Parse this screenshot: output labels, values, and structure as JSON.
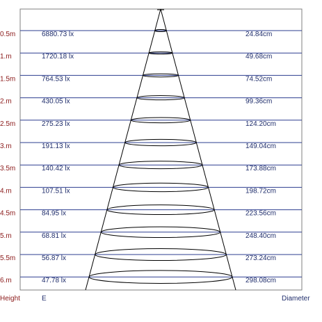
{
  "chart_data": {
    "type": "table",
    "rows": [
      {
        "height": "0.5m",
        "illuminance": "6880.73 lx",
        "diameter": "24.84cm"
      },
      {
        "height": "1.m",
        "illuminance": "1720.18 lx",
        "diameter": "49.68cm"
      },
      {
        "height": "1.5m",
        "illuminance": "764.53 lx",
        "diameter": "74.52cm"
      },
      {
        "height": "2.m",
        "illuminance": "430.05 lx",
        "diameter": "99.36cm"
      },
      {
        "height": "2.5m",
        "illuminance": "275.23 lx",
        "diameter": "124.20cm"
      },
      {
        "height": "3.m",
        "illuminance": "191.13 lx",
        "diameter": "149.04cm"
      },
      {
        "height": "3.5m",
        "illuminance": "140.42 lx",
        "diameter": "173.88cm"
      },
      {
        "height": "4.m",
        "illuminance": "107.51 lx",
        "diameter": "198.72cm"
      },
      {
        "height": "4.5m",
        "illuminance": "84.95 lx",
        "diameter": "223.56cm"
      },
      {
        "height": "5.m",
        "illuminance": "68.81 lx",
        "diameter": "248.40cm"
      },
      {
        "height": "5.5m",
        "illuminance": "56.87 lx",
        "diameter": "273.24cm"
      },
      {
        "height": "6.m",
        "illuminance": "47.78 lx",
        "diameter": "298.08cm"
      }
    ],
    "footer": {
      "height_label": "Height",
      "e_label": "E",
      "diameter_label": "Diameter"
    }
  },
  "colors": {
    "frame": "#7f7f7f",
    "row_line": "#2b3d8f",
    "cone": "#000000",
    "height_text": "#8b1a1a",
    "value_text": "#1f2d6b"
  }
}
